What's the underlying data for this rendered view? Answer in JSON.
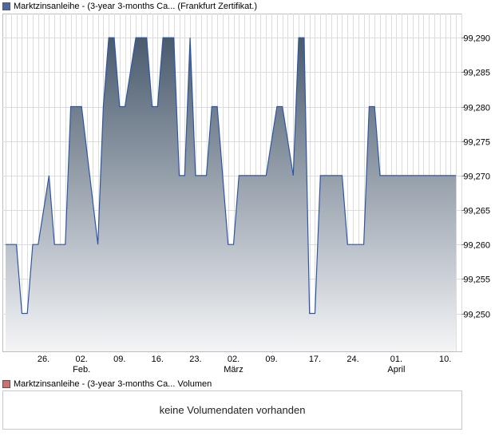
{
  "legend_main": {
    "label": "Marktzinsanleihe - (3-year 3-months Ca... (Frankfurt Zertifikat.)",
    "color": "#4a6aa0"
  },
  "legend_volume": {
    "label": "Marktzinsanleihe - (3-year 3-months Ca... Volumen",
    "color": "#d07070"
  },
  "volume_message": "keine Volumendaten vorhanden",
  "colors": {
    "line": "#2f56a6",
    "area_top": "#4a5b6e",
    "area_bottom": "#f4f5f7",
    "grid": "#dcdcdc",
    "frame": "#bdbdbd"
  },
  "chart_data": {
    "type": "area",
    "ylim": [
      99.2445,
      99.2935
    ],
    "y_ticks": [
      "99,250",
      "99,255",
      "99,260",
      "99,265",
      "99,270",
      "99,275",
      "99,280",
      "99,285",
      "99,290"
    ],
    "y_tick_values": [
      99.25,
      99.255,
      99.26,
      99.265,
      99.27,
      99.275,
      99.28,
      99.285,
      99.29
    ],
    "x_ticks": [
      {
        "label": "26.",
        "month": "",
        "date": "2025-01-26"
      },
      {
        "label": "02.",
        "month": "Feb.",
        "date": "2025-02-02"
      },
      {
        "label": "09.",
        "month": "",
        "date": "2025-02-09"
      },
      {
        "label": "16.",
        "month": "",
        "date": "2025-02-16"
      },
      {
        "label": "23.",
        "month": "",
        "date": "2025-02-23"
      },
      {
        "label": "02.",
        "month": "März",
        "date": "2025-03-02"
      },
      {
        "label": "09.",
        "month": "",
        "date": "2025-03-09"
      },
      {
        "label": "17.",
        "month": "",
        "date": "2025-03-17"
      },
      {
        "label": "24.",
        "month": "",
        "date": "2025-03-24"
      },
      {
        "label": "01.",
        "month": "April",
        "date": "2025-04-01"
      },
      {
        "label": "10.",
        "month": "",
        "date": "2025-04-10"
      }
    ],
    "x": [
      "2025-01-19",
      "2025-01-21",
      "2025-01-22",
      "2025-01-23",
      "2025-01-24",
      "2025-01-25",
      "2025-01-27",
      "2025-01-28",
      "2025-01-30",
      "2025-01-31",
      "2025-02-01",
      "2025-02-02",
      "2025-02-05",
      "2025-02-06",
      "2025-02-07",
      "2025-02-08",
      "2025-02-09",
      "2025-02-10",
      "2025-02-12",
      "2025-02-13",
      "2025-02-14",
      "2025-02-15",
      "2025-02-16",
      "2025-02-17",
      "2025-02-19",
      "2025-02-20",
      "2025-02-21",
      "2025-02-22",
      "2025-02-23",
      "2025-02-25",
      "2025-02-26",
      "2025-02-27",
      "2025-03-01",
      "2025-03-02",
      "2025-03-03",
      "2025-03-04",
      "2025-03-07",
      "2025-03-08",
      "2025-03-10",
      "2025-03-11",
      "2025-03-13",
      "2025-03-14",
      "2025-03-15",
      "2025-03-16",
      "2025-03-17",
      "2025-03-18",
      "2025-03-22",
      "2025-03-23",
      "2025-03-26",
      "2025-03-27",
      "2025-03-28",
      "2025-03-29",
      "2025-03-30",
      "2025-03-31",
      "2025-04-01",
      "2025-04-03",
      "2025-04-04",
      "2025-04-05",
      "2025-04-06",
      "2025-04-08",
      "2025-04-09",
      "2025-04-10",
      "2025-04-11",
      "2025-04-12"
    ],
    "values": [
      99.26,
      99.26,
      99.25,
      99.25,
      99.26,
      99.26,
      99.27,
      99.26,
      99.26,
      99.28,
      99.28,
      99.28,
      99.26,
      99.28,
      99.29,
      99.29,
      99.28,
      99.28,
      99.29,
      99.29,
      99.29,
      99.28,
      99.28,
      99.29,
      99.29,
      99.27,
      99.27,
      99.29,
      99.27,
      99.27,
      99.28,
      99.28,
      99.26,
      99.26,
      99.27,
      99.27,
      99.27,
      99.27,
      99.28,
      99.28,
      99.27,
      99.29,
      99.29,
      99.25,
      99.25,
      99.27,
      99.27,
      99.26,
      99.26,
      99.28,
      99.28,
      99.27,
      99.27,
      99.27,
      99.27,
      99.27,
      99.27,
      99.27,
      99.27,
      99.27,
      99.27,
      99.27,
      99.27,
      99.27
    ],
    "grid": true
  }
}
